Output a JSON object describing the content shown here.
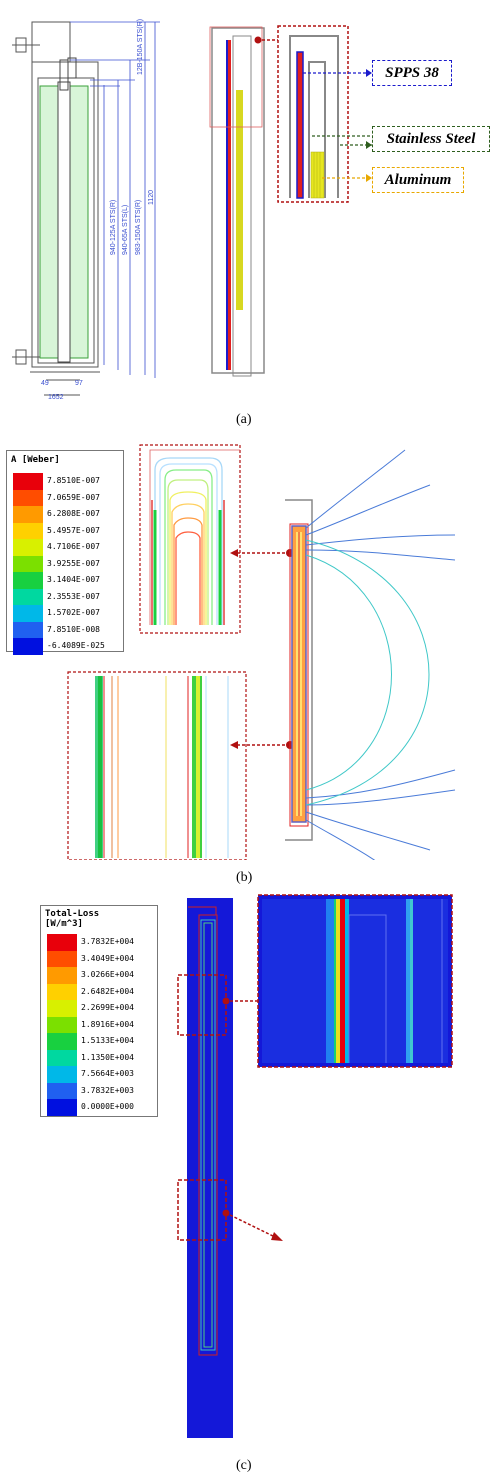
{
  "captions": {
    "a": "(a)",
    "b": "(b)",
    "c": "(c)"
  },
  "panel_a": {
    "dimensions": [
      "12B-150A STS(R)",
      "940-125A STS(R)",
      "940-65A STS(L)",
      "983-150A STS(R)",
      "1120"
    ],
    "bottom_dims": [
      "49",
      "97",
      "1652"
    ],
    "callouts": {
      "spps": "SPPS 38",
      "steel": "Stainless Steel",
      "aluminum": "Aluminum"
    },
    "colors": {
      "spps": "#1a1acc",
      "steel": "#2e5e1e",
      "aluminum": "#e8a800",
      "accent": "#b01010"
    }
  },
  "panel_b": {
    "legend_title": "A [Weber]",
    "legend_values": [
      "7.8510E-007",
      "7.0659E-007",
      "6.2808E-007",
      "5.4957E-007",
      "4.7106E-007",
      "3.9255E-007",
      "3.1404E-007",
      "2.3553E-007",
      "1.5702E-007",
      "7.8510E-008",
      "-6.4089E-025"
    ]
  },
  "panel_c": {
    "legend_title_1": "Total-Loss",
    "legend_title_2": "[W/m^3]",
    "legend_values": [
      "3.7832E+004",
      "3.4049E+004",
      "3.0266E+004",
      "2.6482E+004",
      "2.2699E+004",
      "1.8916E+004",
      "1.5133E+004",
      "1.1350E+004",
      "7.5664E+003",
      "3.7832E+003",
      "0.0000E+000"
    ]
  },
  "scale_colors": [
    "#e8000b",
    "#ff4d00",
    "#ff9a00",
    "#ffd000",
    "#d8f000",
    "#7be000",
    "#18d040",
    "#00d8a0",
    "#00b8e8",
    "#2060f0",
    "#0010e0"
  ]
}
